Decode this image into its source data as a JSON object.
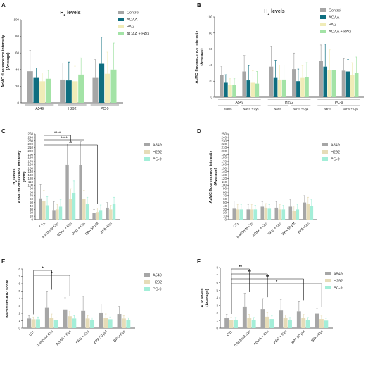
{
  "colors": {
    "Control": "#a6a6a6",
    "AOAA": "#0e6e80",
    "PAG": "#f0ecb8",
    "AOAA + PAG": "#a3e3a6",
    "A549": "#a6a6a6",
    "H292": "#e6dcb8",
    "PC-9": "#a3eed8"
  },
  "chart_data": [
    {
      "panel": "A",
      "type": "bar",
      "title": "H2S levels",
      "ylabel": "AzMC fluorescence intensity\n(Average)",
      "ylim": [
        0,
        100
      ],
      "yticks": [
        0,
        20,
        40,
        60,
        80,
        100
      ],
      "categories": [
        "A549",
        "H292",
        "PC-9"
      ],
      "series": [
        {
          "name": "Control",
          "values": [
            38,
            28,
            30
          ],
          "errors": [
            25,
            20,
            22
          ]
        },
        {
          "name": "AOAA",
          "values": [
            30,
            27,
            47
          ],
          "errors": [
            12,
            22,
            32
          ]
        },
        {
          "name": "PAG",
          "values": [
            26,
            26,
            35
          ],
          "errors": [
            10,
            18,
            26
          ]
        },
        {
          "name": "AOAA + PAG",
          "values": [
            29,
            34,
            40
          ],
          "errors": [
            10,
            20,
            32
          ]
        }
      ],
      "legend": "right"
    },
    {
      "panel": "B",
      "type": "bar",
      "title": "H2S levels",
      "ylabel": "AzMC fluorescence intensity\n(Average)",
      "ylim": [
        0,
        100
      ],
      "yticks": [
        0,
        20,
        40,
        60,
        80,
        100
      ],
      "categories": [
        "NaHS",
        "NaHS + Cys",
        "NaHS",
        "NaHS + Cys",
        "NaHS",
        "NaHS + Cys"
      ],
      "groups": [
        "A549",
        "H292",
        "PC-9"
      ],
      "series": [
        {
          "name": "Control",
          "values": [
            28,
            32,
            38,
            35,
            45,
            33
          ],
          "errors": [
            10,
            20,
            25,
            20,
            20,
            15
          ]
        },
        {
          "name": "AOAA",
          "values": [
            18,
            21,
            24,
            20,
            38,
            32
          ],
          "errors": [
            10,
            18,
            22,
            15,
            28,
            15
          ]
        },
        {
          "name": "PAG",
          "values": [
            15,
            18,
            22,
            24,
            34,
            28
          ],
          "errors": [
            8,
            15,
            18,
            15,
            25,
            15
          ]
        },
        {
          "name": "AOAA + PAG",
          "values": [
            15,
            17,
            22,
            25,
            34,
            30
          ],
          "errors": [
            8,
            15,
            18,
            18,
            20,
            20
          ]
        }
      ],
      "legend": "right"
    },
    {
      "panel": "C",
      "type": "bar",
      "ylabel": "H2S levels\nAzMC fluorescence intensity\n(mdn)",
      "ylim": [
        0,
        250
      ],
      "yticks": [
        0,
        10,
        20,
        30,
        40,
        50,
        60,
        70,
        80,
        90,
        100,
        110,
        120,
        130,
        140,
        150,
        160,
        170,
        180,
        190,
        200,
        210,
        220,
        230,
        240,
        250
      ],
      "categories": [
        "CTL",
        "0.402mM Cys",
        "AOAA + Cys",
        "PAG + Cys",
        "BPA 50 µM",
        "BPA+Cys"
      ],
      "series": [
        {
          "name": "A549",
          "values": [
            62,
            28,
            160,
            158,
            20,
            35
          ],
          "errors": [
            40,
            25,
            60,
            70,
            10,
            15
          ]
        },
        {
          "name": "H292",
          "values": [
            55,
            30,
            60,
            60,
            22,
            30
          ],
          "errors": [
            30,
            15,
            30,
            25,
            12,
            12
          ]
        },
        {
          "name": "PC-9",
          "values": [
            42,
            38,
            78,
            45,
            28,
            45
          ],
          "errors": [
            25,
            20,
            35,
            20,
            15,
            20
          ]
        }
      ],
      "significance": [
        {
          "from": 0,
          "to": 2,
          "label": "****"
        },
        {
          "from": 0,
          "to": 3,
          "label": "****"
        },
        {
          "from": 0,
          "to": 4,
          "label": "**"
        }
      ],
      "legend": "right"
    },
    {
      "panel": "D",
      "type": "bar",
      "ylabel": "AzMC fluorescence intensity\n(Average)",
      "ylim": [
        0,
        250
      ],
      "yticks": [
        0,
        10,
        20,
        30,
        40,
        50,
        60,
        70,
        80,
        90,
        100,
        110,
        120,
        130,
        140,
        150,
        160,
        170,
        180,
        190,
        200,
        210,
        220,
        230,
        240,
        250
      ],
      "categories": [
        "CTL",
        "0.402mM Cys",
        "AOAA + Cys",
        "PAG + Cys",
        "BPA 50 µM",
        "BPA+Cys"
      ],
      "series": [
        {
          "name": "A549",
          "values": [
            32,
            30,
            38,
            35,
            38,
            50
          ],
          "errors": [
            22,
            15,
            15,
            18,
            20,
            20
          ]
        },
        {
          "name": "H292",
          "values": [
            30,
            30,
            35,
            30,
            25,
            45
          ],
          "errors": [
            15,
            15,
            12,
            15,
            15,
            20
          ]
        },
        {
          "name": "PC-9",
          "values": [
            30,
            30,
            32,
            30,
            30,
            40
          ],
          "errors": [
            15,
            12,
            12,
            12,
            15,
            18
          ]
        }
      ],
      "legend": "right"
    },
    {
      "panel": "E",
      "type": "bar",
      "ylabel": "Maximum ATP score",
      "ylim": [
        0,
        8
      ],
      "yticks": [
        0,
        1,
        2,
        3,
        4,
        5,
        6,
        7,
        8
      ],
      "categories": [
        "CTL",
        "0.402mM Cys",
        "AOAA + Cys",
        "PAG + Cys",
        "BPA 50 µM",
        "BPA+Cys"
      ],
      "series": [
        {
          "name": "A549",
          "values": [
            1.3,
            2.8,
            2.5,
            2.4,
            2.1,
            1.9
          ],
          "errors": [
            0.4,
            2.2,
            1.6,
            1.9,
            1.2,
            1.0
          ]
        },
        {
          "name": "H292",
          "values": [
            1.2,
            1.4,
            1.6,
            1.3,
            1.4,
            1.3
          ],
          "errors": [
            0.3,
            0.5,
            0.7,
            0.4,
            0.5,
            0.4
          ]
        },
        {
          "name": "PC-9",
          "values": [
            1.2,
            1.1,
            1.3,
            1.1,
            1.2,
            1.1
          ],
          "errors": [
            0.3,
            0.3,
            0.4,
            0.3,
            0.3,
            0.3
          ]
        }
      ],
      "significance": [
        {
          "from": 0,
          "to": 1,
          "label": "*"
        },
        {
          "from": 0,
          "to": 2,
          "label": "*"
        }
      ],
      "legend": "right"
    },
    {
      "panel": "F",
      "type": "bar",
      "ylabel": "ATP levels\n(Average)",
      "ylim": [
        0,
        8
      ],
      "yticks": [
        0,
        1,
        2,
        3,
        4,
        5,
        6,
        7,
        8
      ],
      "categories": [
        "CTL",
        "0.402mM Cys",
        "AOAA + Cys",
        "PAG + Cys",
        "BPA 50 µM",
        "BPA+Cys"
      ],
      "series": [
        {
          "name": "A549",
          "values": [
            1.3,
            2.8,
            2.5,
            2.4,
            2.2,
            1.9
          ],
          "errors": [
            0.5,
            1.8,
            1.4,
            1.4,
            1.3,
            0.7
          ]
        },
        {
          "name": "H292",
          "values": [
            1.1,
            1.3,
            1.5,
            1.3,
            1.3,
            1.2
          ],
          "errors": [
            0.3,
            0.5,
            0.6,
            0.4,
            0.5,
            0.4
          ]
        },
        {
          "name": "PC-9",
          "values": [
            1.1,
            1.1,
            1.2,
            1.1,
            1.1,
            1.0
          ],
          "errors": [
            0.3,
            0.3,
            0.4,
            0.3,
            0.3,
            0.3
          ]
        }
      ],
      "significance": [
        {
          "from": 0,
          "to": 1,
          "label": "**"
        },
        {
          "from": 0,
          "to": 2,
          "label": "**"
        },
        {
          "from": 0,
          "to": 4,
          "label": "**"
        },
        {
          "from": 0,
          "to": 5,
          "label": "*"
        }
      ],
      "legend": "right"
    }
  ]
}
